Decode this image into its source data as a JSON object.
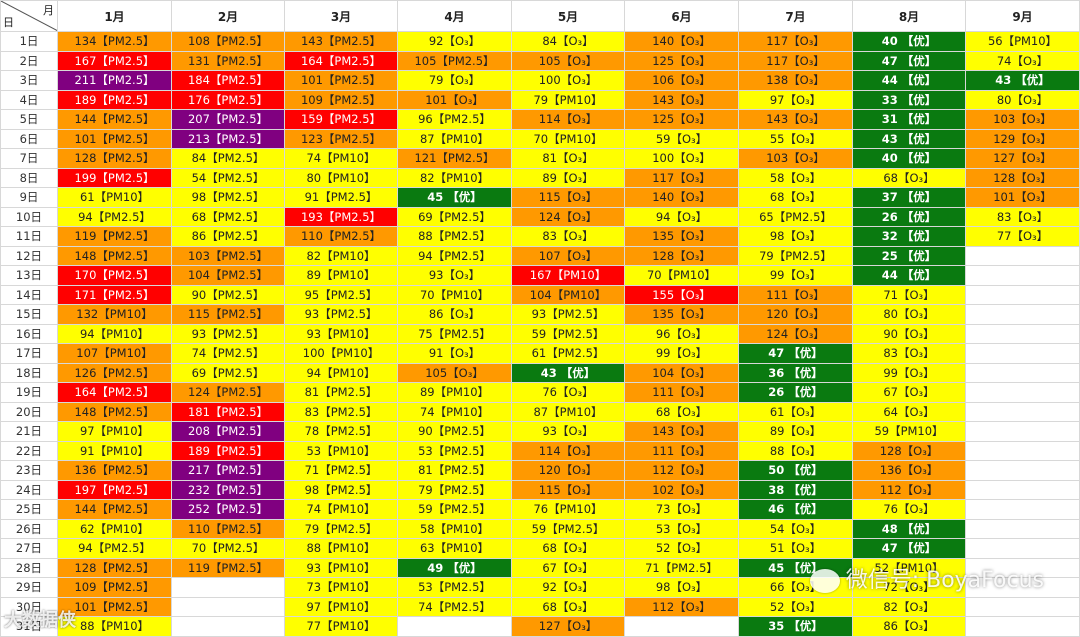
{
  "header": {
    "corner_month": "月",
    "corner_day": "日",
    "months": [
      "1月",
      "2月",
      "3月",
      "4月",
      "5月",
      "6月",
      "7月",
      "8月",
      "9月"
    ]
  },
  "legend_colors": {
    "good": "#0a7a10",
    "moderate": "#ffff00",
    "unhealthy_sensitive": "#ff9900",
    "unhealthy": "#ff0000",
    "very_unhealthy": "#800080"
  },
  "days": [
    "1日",
    "2日",
    "3日",
    "4日",
    "5日",
    "6日",
    "7日",
    "8日",
    "9日",
    "10日",
    "11日",
    "12日",
    "13日",
    "14日",
    "15日",
    "16日",
    "17日",
    "18日",
    "19日",
    "20日",
    "21日",
    "22日",
    "23日",
    "24日",
    "25日",
    "26日",
    "27日",
    "28日",
    "29日",
    "30日",
    "31日"
  ],
  "rows": [
    [
      "134【PM2.5】",
      "108【PM2.5】",
      "143【PM2.5】",
      "92【O₃】",
      "84【O₃】",
      "140【O₃】",
      "117【O₃】",
      "40 【优】",
      "56【PM10】"
    ],
    [
      "167【PM2.5】",
      "131【PM2.5】",
      "164【PM2.5】",
      "105【PM2.5】",
      "105【O₃】",
      "125【O₃】",
      "117【O₃】",
      "47 【优】",
      "74【O₃】"
    ],
    [
      "211【PM2.5】",
      "184【PM2.5】",
      "101【PM2.5】",
      "79【O₃】",
      "100【O₃】",
      "106【O₃】",
      "138【O₃】",
      "44 【优】",
      "43 【优】"
    ],
    [
      "189【PM2.5】",
      "176【PM2.5】",
      "109【PM2.5】",
      "101【O₃】",
      "79【PM10】",
      "143【O₃】",
      "97【O₃】",
      "33 【优】",
      "80【O₃】"
    ],
    [
      "144【PM2.5】",
      "207【PM2.5】",
      "159【PM2.5】",
      "96【PM2.5】",
      "114【O₃】",
      "125【O₃】",
      "143【O₃】",
      "31 【优】",
      "103【O₃】"
    ],
    [
      "101【PM2.5】",
      "213【PM2.5】",
      "123【PM2.5】",
      "87【PM10】",
      "70【PM10】",
      "59【O₃】",
      "55【O₃】",
      "43 【优】",
      "129【O₃】"
    ],
    [
      "128【PM2.5】",
      "84【PM2.5】",
      "74【PM10】",
      "121【PM2.5】",
      "81【O₃】",
      "100【O₃】",
      "103【O₃】",
      "40 【优】",
      "127【O₃】"
    ],
    [
      "199【PM2.5】",
      "54【PM2.5】",
      "80【PM10】",
      "82【PM10】",
      "89【O₃】",
      "117【O₃】",
      "58【O₃】",
      "68【O₃】",
      "128【O₃】"
    ],
    [
      "61【PM10】",
      "98【PM2.5】",
      "91【PM2.5】",
      "45 【优】",
      "115【O₃】",
      "140【O₃】",
      "68【O₃】",
      "37 【优】",
      "101【O₃】"
    ],
    [
      "94【PM2.5】",
      "68【PM2.5】",
      "193【PM2.5】",
      "69【PM2.5】",
      "124【O₃】",
      "94【O₃】",
      "65【PM2.5】",
      "26 【优】",
      "83【O₃】"
    ],
    [
      "119【PM2.5】",
      "86【PM2.5】",
      "110【PM2.5】",
      "88【PM2.5】",
      "83【O₃】",
      "135【O₃】",
      "98【O₃】",
      "32 【优】",
      "77【O₃】"
    ],
    [
      "148【PM2.5】",
      "103【PM2.5】",
      "82【PM10】",
      "94【PM2.5】",
      "107【O₃】",
      "128【O₃】",
      "79【PM2.5】",
      "25 【优】",
      ""
    ],
    [
      "170【PM2.5】",
      "104【PM2.5】",
      "89【PM10】",
      "93【O₃】",
      "167【PM10】",
      "70【PM10】",
      "99【O₃】",
      "44 【优】",
      ""
    ],
    [
      "171【PM2.5】",
      "90【PM2.5】",
      "95【PM2.5】",
      "70【PM10】",
      "104【PM10】",
      "155【O₃】",
      "111【O₃】",
      "71【O₃】",
      ""
    ],
    [
      "132【PM10】",
      "115【PM2.5】",
      "93【PM2.5】",
      "86【O₃】",
      "93【PM2.5】",
      "135【O₃】",
      "120【O₃】",
      "80【O₃】",
      ""
    ],
    [
      "94【PM10】",
      "93【PM2.5】",
      "93【PM10】",
      "75【PM2.5】",
      "59【PM2.5】",
      "96【O₃】",
      "124【O₃】",
      "90【O₃】",
      ""
    ],
    [
      "107【PM10】",
      "74【PM2.5】",
      "100【PM10】",
      "91【O₃】",
      "61【PM2.5】",
      "99【O₃】",
      "47 【优】",
      "83【O₃】",
      ""
    ],
    [
      "126【PM2.5】",
      "69【PM2.5】",
      "94【PM10】",
      "105【O₃】",
      "43 【优】",
      "104【O₃】",
      "36 【优】",
      "99【O₃】",
      ""
    ],
    [
      "164【PM2.5】",
      "124【PM2.5】",
      "81【PM2.5】",
      "89【PM10】",
      "76【O₃】",
      "111【O₃】",
      "26 【优】",
      "67【O₃】",
      ""
    ],
    [
      "148【PM2.5】",
      "181【PM2.5】",
      "83【PM2.5】",
      "74【PM10】",
      "87【PM10】",
      "68【O₃】",
      "61【O₃】",
      "64【O₃】",
      ""
    ],
    [
      "97【PM10】",
      "208【PM2.5】",
      "78【PM2.5】",
      "90【PM2.5】",
      "93【O₃】",
      "143【O₃】",
      "89【O₃】",
      "59【PM10】",
      ""
    ],
    [
      "91【PM10】",
      "189【PM2.5】",
      "53【PM10】",
      "53【PM2.5】",
      "114【O₃】",
      "111【O₃】",
      "88【O₃】",
      "128【O₃】",
      ""
    ],
    [
      "136【PM2.5】",
      "217【PM2.5】",
      "71【PM2.5】",
      "81【PM2.5】",
      "120【O₃】",
      "112【O₃】",
      "50 【优】",
      "136【O₃】",
      ""
    ],
    [
      "197【PM2.5】",
      "232【PM2.5】",
      "98【PM2.5】",
      "79【PM2.5】",
      "115【O₃】",
      "102【O₃】",
      "38 【优】",
      "112【O₃】",
      ""
    ],
    [
      "144【PM2.5】",
      "252【PM2.5】",
      "74【PM10】",
      "59【PM2.5】",
      "76【PM10】",
      "73【O₃】",
      "46 【优】",
      "76【O₃】",
      ""
    ],
    [
      "62【PM10】",
      "110【PM2.5】",
      "79【PM2.5】",
      "58【PM10】",
      "59【PM2.5】",
      "53【O₃】",
      "54【O₃】",
      "48 【优】",
      ""
    ],
    [
      "94【PM2.5】",
      "70【PM2.5】",
      "88【PM10】",
      "63【PM10】",
      "68【O₃】",
      "52【O₃】",
      "51【O₃】",
      "47 【优】",
      ""
    ],
    [
      "128【PM2.5】",
      "119【PM2.5】",
      "93【PM10】",
      "49 【优】",
      "67【O₃】",
      "71【PM2.5】",
      "45 【优】",
      "52【PM10】",
      ""
    ],
    [
      "109【PM2.5】",
      "",
      "73【PM10】",
      "53【PM2.5】",
      "92【O₃】",
      "98【O₃】",
      "66【O₃】",
      "72【O₃】",
      ""
    ],
    [
      "101【PM2.5】",
      "",
      "97【PM10】",
      "74【PM2.5】",
      "68【O₃】",
      "112【O₃】",
      "52【O₃】",
      "82【O₃】",
      ""
    ],
    [
      "88【PM10】",
      "",
      "77【PM10】",
      "",
      "127【O₃】",
      "",
      "35 【优】",
      "86【O₃】",
      ""
    ]
  ],
  "watermarks": {
    "left": "大数据侠",
    "right": "微信号: BoyaFocus"
  }
}
